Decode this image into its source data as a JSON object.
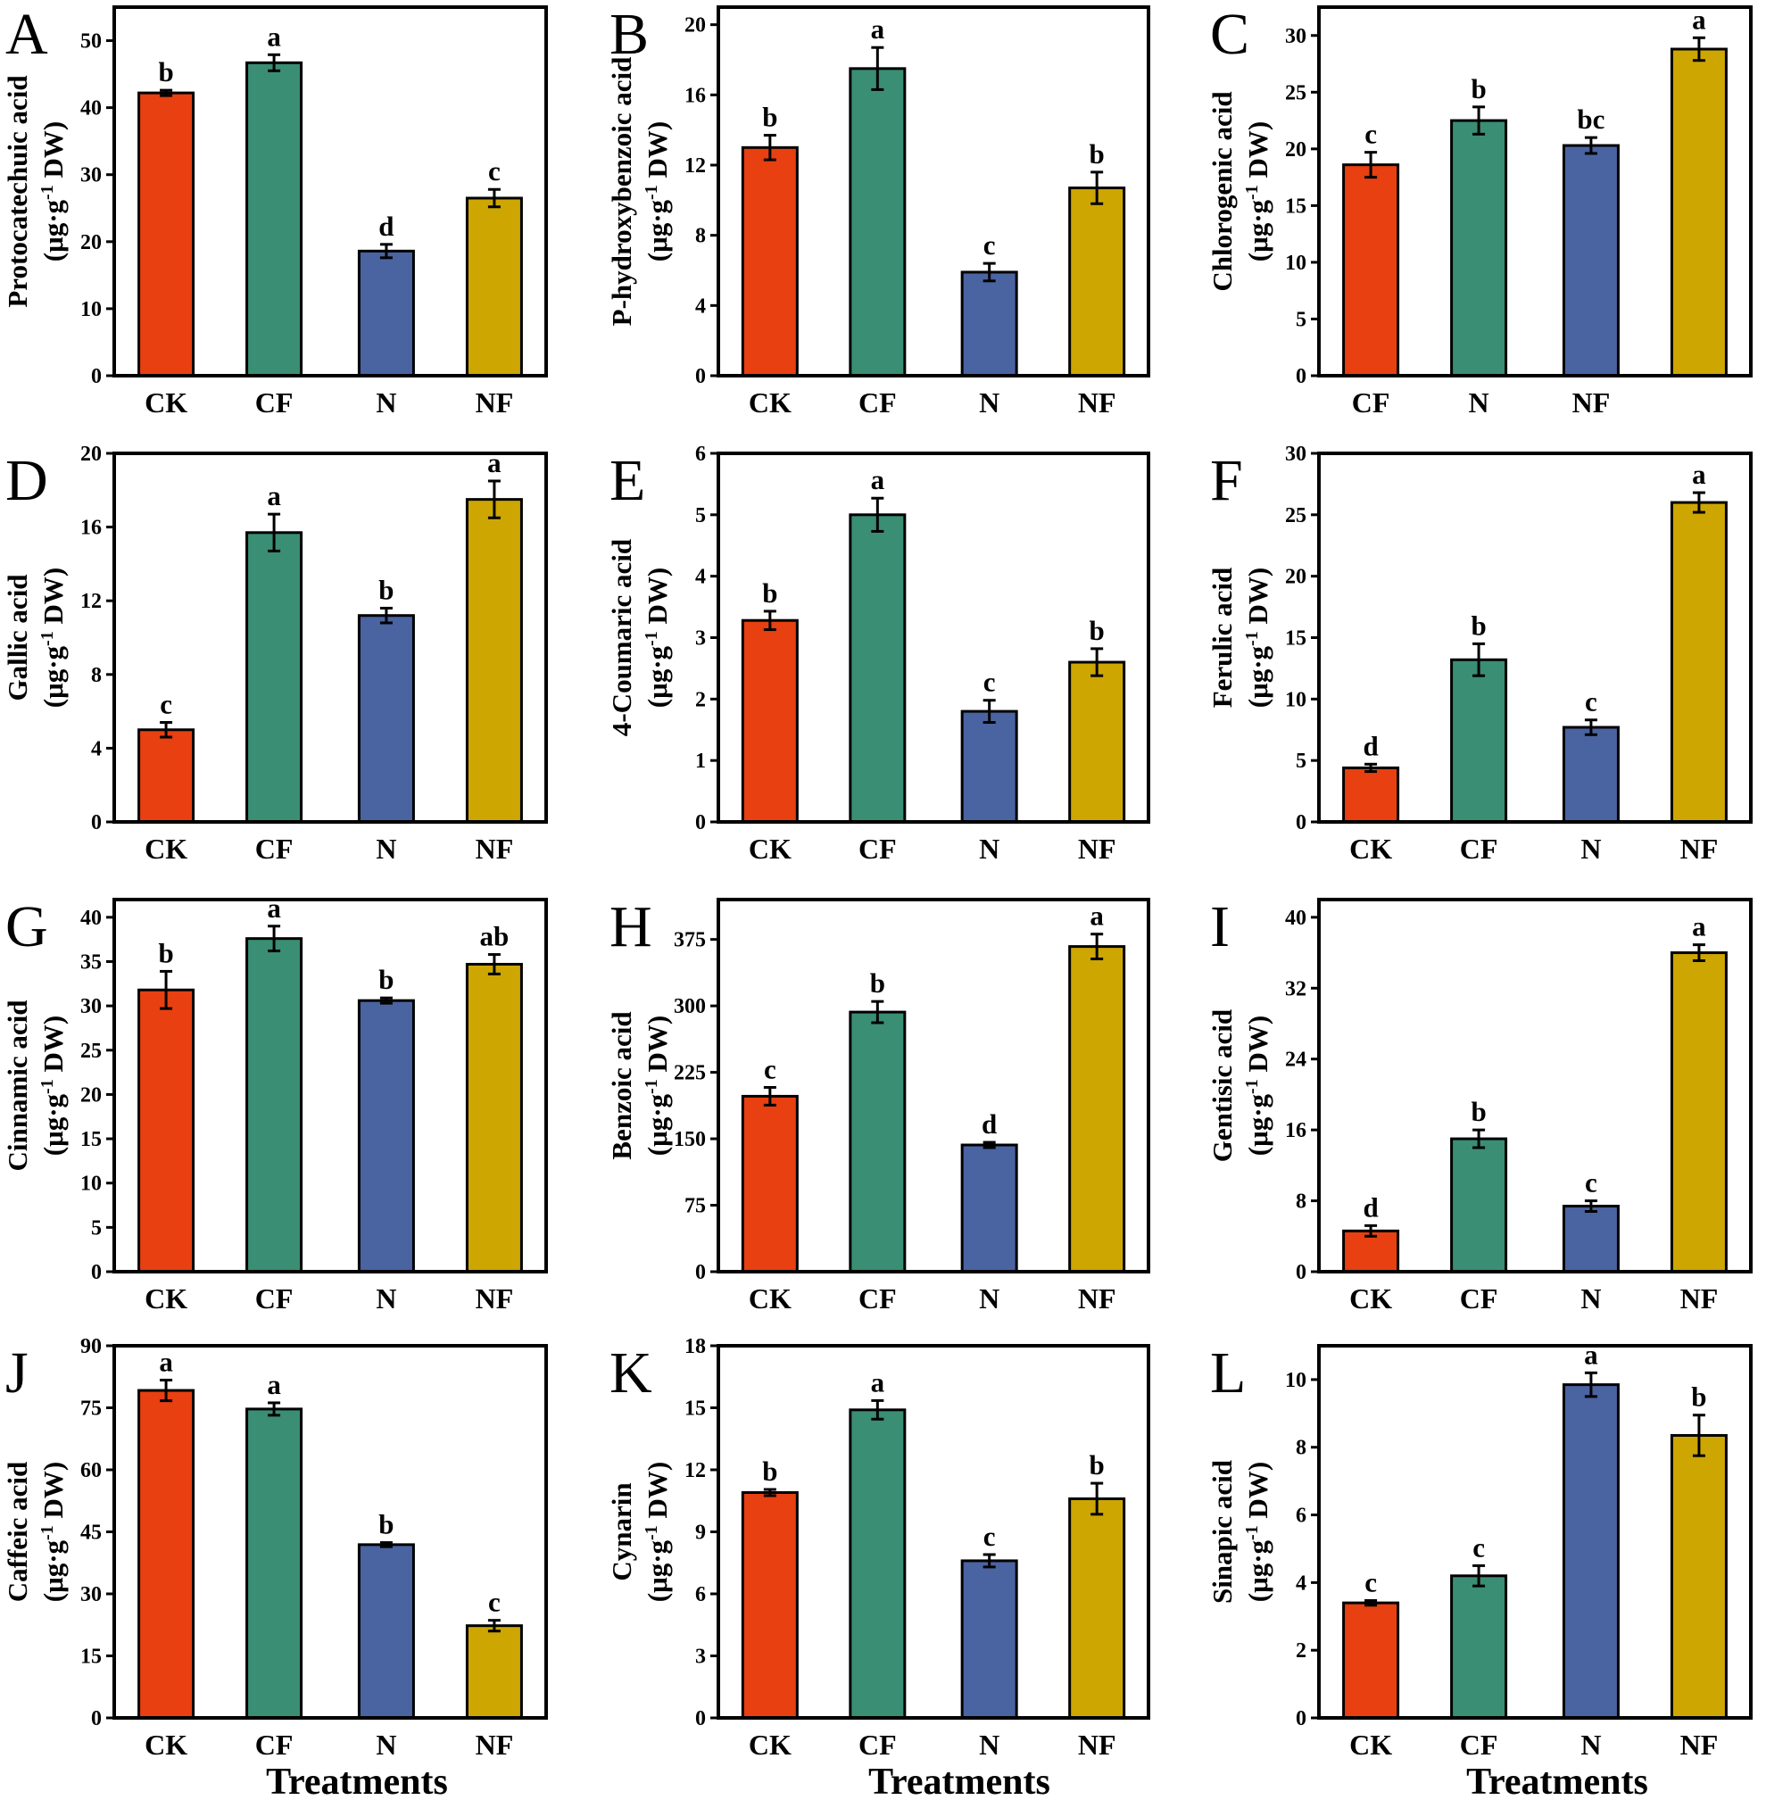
{
  "figure": {
    "x_axis_title": "Treatments"
  },
  "colors": {
    "CK": "#E84011",
    "CF": "#3A8E73",
    "N": "#4A63A1",
    "NF": "#CDA602"
  },
  "chart_data": [
    {
      "type": "bar",
      "panel": "A",
      "ylabel": "Protocatechuic acid",
      "unit": "(μg·g-1 DW)",
      "ylim": [
        0,
        55
      ],
      "yticks": [
        0,
        10,
        20,
        30,
        40,
        50
      ],
      "categories": [
        "CK",
        "CF",
        "N",
        "NF"
      ],
      "values": [
        42.2,
        46.7,
        18.6,
        26.5
      ],
      "errors": [
        0.4,
        1.2,
        1.0,
        1.3
      ],
      "significance": [
        "b",
        "a",
        "d",
        "c"
      ]
    },
    {
      "type": "bar",
      "panel": "B",
      "ylabel": "P-hydroxybenzoic acid",
      "unit": "(μg·g-1 DW)",
      "ylim": [
        0,
        21
      ],
      "yticks": [
        0,
        4,
        8,
        12,
        16,
        20
      ],
      "categories": [
        "CK",
        "CF",
        "N",
        "NF"
      ],
      "values": [
        13.0,
        17.5,
        5.9,
        10.7
      ],
      "errors": [
        0.7,
        1.2,
        0.5,
        0.9
      ],
      "significance": [
        "b",
        "a",
        "c",
        "b"
      ]
    },
    {
      "type": "bar",
      "panel": "C",
      "ylabel": "Chlorogenic acid",
      "unit": "(μg·g-1 DW)",
      "ylim": [
        0,
        32.5
      ],
      "yticks": [
        0,
        5,
        10,
        15,
        20,
        25,
        30
      ],
      "categories": [
        "CF",
        "N",
        "NF",
        ""
      ],
      "values": [
        18.6,
        22.5,
        20.3,
        28.8
      ],
      "errors": [
        1.1,
        1.2,
        0.7,
        1.0
      ],
      "significance": [
        "c",
        "b",
        "bc",
        "a"
      ]
    },
    {
      "type": "bar",
      "panel": "D",
      "ylabel": "Gallic acid",
      "unit": "(μg·g-1 DW)",
      "ylim": [
        0,
        20
      ],
      "yticks": [
        0,
        4,
        8,
        12,
        16,
        20
      ],
      "categories": [
        "CK",
        "CF",
        "N",
        "NF"
      ],
      "values": [
        5.0,
        15.7,
        11.2,
        17.5
      ],
      "errors": [
        0.4,
        1.0,
        0.4,
        1.0
      ],
      "significance": [
        "c",
        "a",
        "b",
        "a"
      ]
    },
    {
      "type": "bar",
      "panel": "E",
      "ylabel": "4-Coumaric acid",
      "unit": "(μg·g-1 DW)",
      "ylim": [
        0,
        6
      ],
      "yticks": [
        0,
        1,
        2,
        3,
        4,
        5,
        6
      ],
      "categories": [
        "CK",
        "CF",
        "N",
        "NF"
      ],
      "values": [
        3.28,
        5.0,
        1.8,
        2.6
      ],
      "errors": [
        0.15,
        0.27,
        0.18,
        0.22
      ],
      "significance": [
        "b",
        "a",
        "c",
        "b"
      ]
    },
    {
      "type": "bar",
      "panel": "F",
      "ylabel": "Ferulic acid",
      "unit": "(μg·g-1 DW)",
      "ylim": [
        0,
        30
      ],
      "yticks": [
        0,
        5,
        10,
        15,
        20,
        25,
        30
      ],
      "categories": [
        "CK",
        "CF",
        "N",
        "NF"
      ],
      "values": [
        4.4,
        13.2,
        7.7,
        26.0
      ],
      "errors": [
        0.3,
        1.3,
        0.6,
        0.8
      ],
      "significance": [
        "d",
        "b",
        "c",
        "a"
      ]
    },
    {
      "type": "bar",
      "panel": "G",
      "ylabel": "Cinnamic acid",
      "unit": "(μg·g-1 DW)",
      "ylim": [
        0,
        42
      ],
      "yticks": [
        0,
        5,
        10,
        15,
        20,
        25,
        30,
        35,
        40
      ],
      "categories": [
        "CK",
        "CF",
        "N",
        "NF"
      ],
      "values": [
        31.8,
        37.6,
        30.6,
        34.7
      ],
      "errors": [
        2.1,
        1.4,
        0.3,
        1.1
      ],
      "significance": [
        "b",
        "a",
        "b",
        "ab"
      ]
    },
    {
      "type": "bar",
      "panel": "H",
      "ylabel": "Benzoic acid",
      "unit": "(μg·g-1 DW)",
      "ylim": [
        0,
        420
      ],
      "yticks": [
        0,
        75,
        150,
        225,
        300,
        375
      ],
      "categories": [
        "CK",
        "CF",
        "N",
        "NF"
      ],
      "values": [
        198,
        293,
        143,
        367
      ],
      "errors": [
        10,
        12,
        3,
        14
      ],
      "significance": [
        "c",
        "b",
        "d",
        "a"
      ]
    },
    {
      "type": "bar",
      "panel": "I",
      "ylabel": "Gentisic acid",
      "unit": "(μg·g-1 DW)",
      "ylim": [
        0,
        42
      ],
      "yticks": [
        0,
        8,
        16,
        24,
        32,
        40
      ],
      "categories": [
        "CK",
        "CF",
        "N",
        "NF"
      ],
      "values": [
        4.6,
        15.0,
        7.4,
        36.0
      ],
      "errors": [
        0.6,
        1.0,
        0.6,
        0.9
      ],
      "significance": [
        "d",
        "b",
        "c",
        "a"
      ]
    },
    {
      "type": "bar",
      "panel": "J",
      "ylabel": "Caffeic acid",
      "unit": "(μg·g-1 DW)",
      "ylim": [
        0,
        90
      ],
      "yticks": [
        0,
        15,
        30,
        45,
        60,
        75,
        90
      ],
      "categories": [
        "CK",
        "CF",
        "N",
        "NF"
      ],
      "values": [
        79.2,
        74.7,
        41.9,
        22.3
      ],
      "errors": [
        2.5,
        1.5,
        0.5,
        1.3
      ],
      "significance": [
        "a",
        "a",
        "b",
        "c"
      ]
    },
    {
      "type": "bar",
      "panel": "K",
      "ylabel": "Cynarin",
      "unit": "(μg·g-1 DW)",
      "ylim": [
        0,
        18
      ],
      "yticks": [
        0,
        3,
        6,
        9,
        12,
        15,
        18
      ],
      "categories": [
        "CK",
        "CF",
        "N",
        "NF"
      ],
      "values": [
        10.9,
        14.9,
        7.6,
        10.6
      ],
      "errors": [
        0.15,
        0.45,
        0.3,
        0.75
      ],
      "significance": [
        "b",
        "a",
        "c",
        "b"
      ]
    },
    {
      "type": "bar",
      "panel": "L",
      "ylabel": "Sinapic acid",
      "unit": "(μg·g-1 DW)",
      "ylim": [
        0,
        11
      ],
      "yticks": [
        0,
        2,
        4,
        6,
        8,
        10
      ],
      "categories": [
        "CK",
        "CF",
        "N",
        "NF"
      ],
      "values": [
        3.4,
        4.2,
        9.85,
        8.35
      ],
      "errors": [
        0.07,
        0.3,
        0.35,
        0.6
      ],
      "significance": [
        "c",
        "c",
        "a",
        "b"
      ]
    }
  ]
}
